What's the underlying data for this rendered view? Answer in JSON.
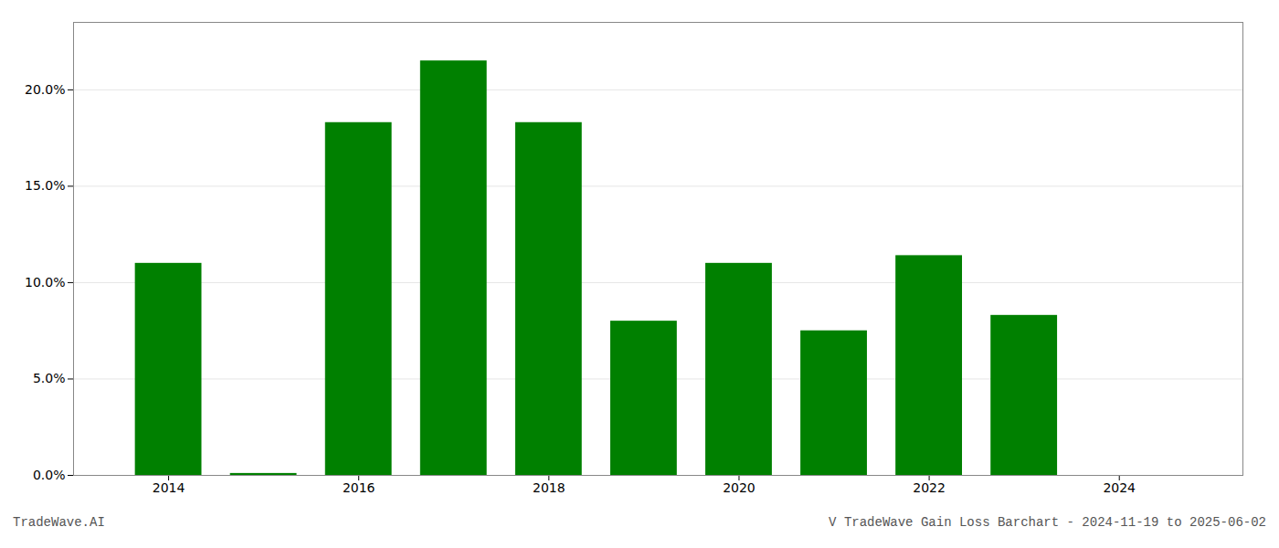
{
  "chart_data": {
    "type": "bar",
    "title": "V TradeWave Gain Loss Barchart - 2024-11-19 to 2025-06-02",
    "annotations": [
      "TradeWave.AI"
    ],
    "x": [
      2014,
      2015,
      2016,
      2017,
      2018,
      2019,
      2020,
      2021,
      2022,
      2023,
      2024
    ],
    "values": [
      0.11,
      0.001,
      0.183,
      0.215,
      0.183,
      0.08,
      0.11,
      0.075,
      0.114,
      0.083,
      0.0
    ],
    "color": "#008000",
    "xlim": [
      2013.0,
      2025.3
    ],
    "xticks": [
      2014,
      2016,
      2018,
      2020,
      2022,
      2024
    ],
    "ylim": [
      0,
      0.235
    ],
    "yticks": [
      {
        "value": 0.0,
        "label": "0.0%"
      },
      {
        "value": 0.05,
        "label": "5.0%"
      },
      {
        "value": 0.1,
        "label": "10.0%"
      },
      {
        "value": 0.15,
        "label": "15.0%"
      },
      {
        "value": 0.2,
        "label": "20.0%"
      }
    ],
    "grid": true
  }
}
